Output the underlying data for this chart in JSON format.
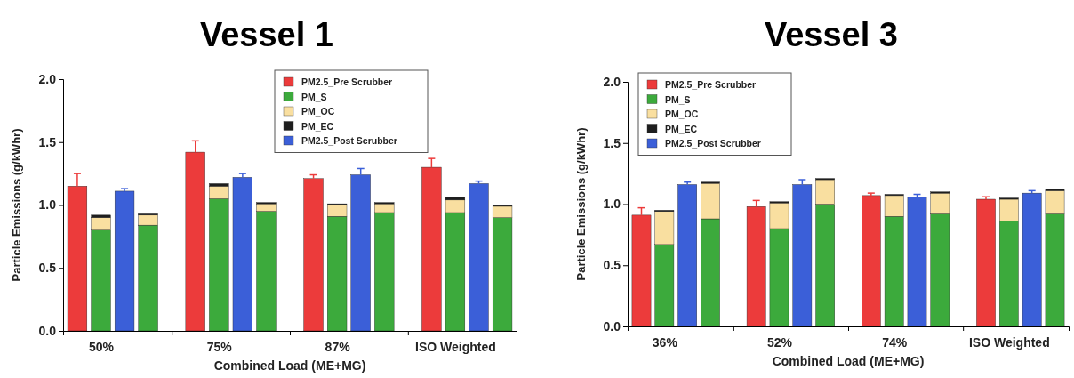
{
  "chart_data": [
    {
      "type": "bar",
      "title": "Vessel 1",
      "xlabel": "Combined Load (ME+MG)",
      "ylabel": "Particle Emissions (g/kWhr)",
      "stacked": true,
      "legend": "top right",
      "grid": false,
      "categories": [
        null,
        "50%",
        null,
        null,
        null,
        null,
        "75%",
        null,
        null,
        null,
        null,
        "87%",
        null,
        null,
        null,
        null,
        "ISO Weighted",
        null,
        null
      ],
      "ylim": [
        0,
        2.0
      ],
      "yticks": [
        {
          "value": 0,
          "label": "0.0"
        },
        {
          "value": 0.5,
          "label": "0.5"
        },
        {
          "value": 1.0,
          "label": "1.0"
        },
        {
          "value": 1.5,
          "label": "1.5"
        },
        {
          "value": 2.0,
          "label": "2.0"
        }
      ],
      "series": [
        {
          "name": "PM2.5_Pre Scrubber",
          "color": "#ec3b3b",
          "values": [
            1.15,
            null,
            null,
            null,
            null,
            1.42,
            null,
            null,
            null,
            null,
            1.21,
            null,
            null,
            null,
            null,
            1.3,
            null,
            null,
            null
          ],
          "errors": [
            [
              1.15,
              1.25
            ],
            null,
            null,
            null,
            null,
            [
              1.42,
              1.51
            ],
            null,
            null,
            null,
            null,
            [
              1.21,
              1.24
            ],
            null,
            null,
            null,
            null,
            [
              1.3,
              1.37
            ],
            null,
            null,
            null
          ]
        },
        {
          "name": "PM_S",
          "color": "#3caa3c",
          "values": [
            null,
            0.8,
            null,
            0.84,
            null,
            null,
            1.05,
            null,
            0.95,
            null,
            null,
            0.91,
            null,
            0.94,
            null,
            null,
            0.94,
            null,
            0.9
          ]
        },
        {
          "name": "PM_OC",
          "color": "#f9dfa0",
          "values": [
            null,
            0.1,
            null,
            0.08,
            null,
            null,
            0.1,
            null,
            0.06,
            null,
            null,
            0.09,
            null,
            0.07,
            null,
            null,
            0.1,
            null,
            0.09
          ]
        },
        {
          "name": "PM_EC",
          "color": "#1e1e1e",
          "values": [
            null,
            0.02,
            null,
            0.01,
            null,
            null,
            0.02,
            null,
            0.01,
            null,
            null,
            0.01,
            null,
            0.01,
            null,
            null,
            0.02,
            null,
            0.01
          ]
        },
        {
          "name": "PM2.5_Post Scrubber",
          "color": "#3b5fd8",
          "values": [
            null,
            null,
            1.11,
            null,
            null,
            null,
            null,
            1.22,
            null,
            null,
            null,
            null,
            1.24,
            null,
            null,
            null,
            null,
            1.17,
            null
          ],
          "errors": [
            null,
            null,
            [
              1.11,
              1.13
            ],
            null,
            null,
            null,
            null,
            [
              1.22,
              1.25
            ],
            null,
            null,
            null,
            null,
            [
              1.24,
              1.29
            ],
            null,
            null,
            null,
            null,
            [
              1.17,
              1.19
            ],
            null
          ]
        }
      ]
    },
    {
      "type": "bar",
      "title": "Vessel 3",
      "xlabel": "Combined Load (ME+MG)",
      "ylabel": "Particle Emissions (g/kWhr)",
      "stacked": true,
      "legend": "top left",
      "grid": false,
      "categories": [
        null,
        "36%",
        null,
        null,
        null,
        null,
        "52%",
        null,
        null,
        null,
        null,
        "74%",
        null,
        null,
        null,
        null,
        "ISO Weighted",
        null,
        null
      ],
      "ylim": [
        0,
        2.0
      ],
      "yticks": [
        {
          "value": 0,
          "label": "0.0"
        },
        {
          "value": 0.5,
          "label": "0.5"
        },
        {
          "value": 1.0,
          "label": "1.0"
        },
        {
          "value": 1.5,
          "label": "1.5"
        },
        {
          "value": 2.0,
          "label": "2.0"
        }
      ],
      "series": [
        {
          "name": "PM2.5_Pre Scrubber",
          "color": "#ec3b3b",
          "values": [
            0.91,
            null,
            null,
            null,
            null,
            0.98,
            null,
            null,
            null,
            null,
            1.07,
            null,
            null,
            null,
            null,
            1.04,
            null,
            null,
            null
          ],
          "errors": [
            [
              0.91,
              0.97
            ],
            null,
            null,
            null,
            null,
            [
              0.98,
              1.03
            ],
            null,
            null,
            null,
            null,
            [
              1.07,
              1.09
            ],
            null,
            null,
            null,
            null,
            [
              1.04,
              1.06
            ],
            null,
            null,
            null
          ]
        },
        {
          "name": "PM_S",
          "color": "#3caa3c",
          "values": [
            null,
            0.67,
            null,
            0.88,
            null,
            null,
            0.8,
            null,
            1.0,
            null,
            null,
            0.9,
            null,
            0.92,
            null,
            null,
            0.86,
            null,
            0.92
          ]
        },
        {
          "name": "PM_OC",
          "color": "#f9dfa0",
          "values": [
            null,
            0.27,
            null,
            0.29,
            null,
            null,
            0.21,
            null,
            0.2,
            null,
            null,
            0.17,
            null,
            0.17,
            null,
            null,
            0.18,
            null,
            0.19
          ]
        },
        {
          "name": "PM_EC",
          "color": "#1e1e1e",
          "values": [
            null,
            0.01,
            null,
            0.01,
            null,
            null,
            0.01,
            null,
            0.01,
            null,
            null,
            0.01,
            null,
            0.01,
            null,
            null,
            0.01,
            null,
            0.01
          ]
        },
        {
          "name": "PM2.5_Post Scrubber",
          "color": "#3b5fd8",
          "values": [
            null,
            null,
            1.16,
            null,
            null,
            null,
            null,
            1.16,
            null,
            null,
            null,
            null,
            1.06,
            null,
            null,
            null,
            null,
            1.09,
            null
          ],
          "errors": [
            null,
            null,
            [
              1.16,
              1.18
            ],
            null,
            null,
            null,
            null,
            [
              1.16,
              1.2
            ],
            null,
            null,
            null,
            null,
            [
              1.06,
              1.08
            ],
            null,
            null,
            null,
            null,
            [
              1.09,
              1.11
            ],
            null
          ]
        }
      ]
    }
  ]
}
